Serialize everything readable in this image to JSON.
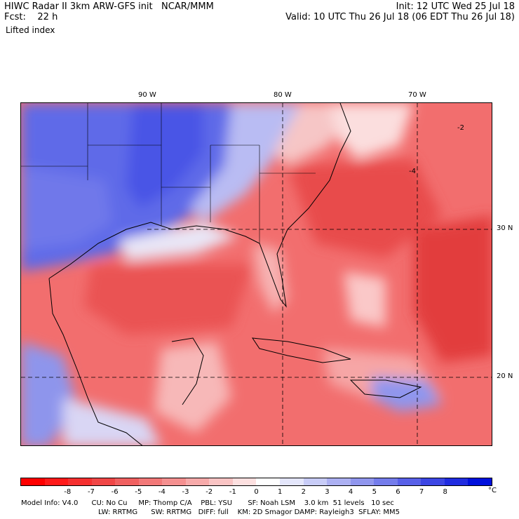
{
  "header": {
    "line1_left": "HIWC Radar II 3km ARW-GFS init   NCAR/MMM",
    "line2_left": "Fcst:    22 h",
    "field_name": "Lifted index",
    "line1_right": "Init: 12 UTC Wed 25 Jul 18",
    "line2_right": "Valid: 10 UTC Thu 26 Jul 18 (06 EDT Thu 26 Jul 18)"
  },
  "map": {
    "lon_labels": [
      {
        "text": "90 W",
        "lon": 90
      },
      {
        "text": "80 W",
        "lon": 80
      },
      {
        "text": "70 W",
        "lon": 70
      }
    ],
    "lat_labels": [
      {
        "text": "30 N",
        "lat": 30
      },
      {
        "text": "20 N",
        "lat": 20
      }
    ],
    "contour_labels": [
      "-2",
      "-4"
    ]
  },
  "colorbar": {
    "ticks": [
      "-8",
      "-7",
      "-6",
      "-5",
      "-4",
      "-3",
      "-2",
      "-1",
      "0",
      "1",
      "2",
      "3",
      "4",
      "5",
      "6",
      "7",
      "8"
    ],
    "unit": "°C",
    "colors": [
      "#ff0000",
      "#ff1a1a",
      "#f53030",
      "#f04646",
      "#f06060",
      "#f27878",
      "#f59090",
      "#f7aaaa",
      "#fac4c4",
      "#fde0e0",
      "#ffffff",
      "#e4e6fb",
      "#c8ccf7",
      "#acb0f2",
      "#9096ee",
      "#747ceb",
      "#5860e8",
      "#3c46e4",
      "#202ce0",
      "#0010dc"
    ]
  },
  "model_info": {
    "line1": "Model Info: V4.0      CU: No Cu     MP: Thomp C/A    PBL: YSU       SF: Noah LSM    3.0 km  51 levels   10 sec",
    "line2": "LW: RRTMG      SW: RRTMG   DIFF: full    KM: 2D Smagor DAMP: Rayleigh3  SFLAY: MM5"
  }
}
